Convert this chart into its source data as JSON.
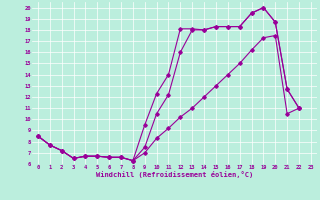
{
  "xlabel": "Windchill (Refroidissement éolien,°C)",
  "background_color": "#bbeedd",
  "line_color": "#990099",
  "xlim": [
    -0.5,
    23.5
  ],
  "ylim": [
    6,
    20.5
  ],
  "xticks": [
    0,
    1,
    2,
    3,
    4,
    5,
    6,
    7,
    8,
    9,
    10,
    11,
    12,
    13,
    14,
    15,
    16,
    17,
    18,
    19,
    20,
    21,
    22,
    23
  ],
  "yticks": [
    6,
    7,
    8,
    9,
    10,
    11,
    12,
    13,
    14,
    15,
    16,
    17,
    18,
    19,
    20
  ],
  "series": [
    {
      "x": [
        0,
        1,
        2,
        3,
        4,
        5,
        6,
        7,
        8,
        9,
        10,
        11,
        12,
        13,
        14,
        15,
        16,
        17,
        18,
        19,
        20,
        21,
        22
      ],
      "y": [
        8.5,
        7.7,
        7.2,
        6.5,
        6.7,
        6.7,
        6.6,
        6.6,
        6.3,
        9.5,
        12.3,
        14.0,
        18.1,
        18.1,
        18.0,
        18.3,
        18.3,
        18.3,
        19.5,
        20.0,
        18.7,
        12.7,
        11.0
      ]
    },
    {
      "x": [
        0,
        1,
        2,
        3,
        4,
        5,
        6,
        7,
        8,
        9,
        10,
        11,
        12,
        13,
        14,
        15,
        16,
        17,
        18,
        19,
        20,
        21,
        22
      ],
      "y": [
        8.5,
        7.7,
        7.2,
        6.5,
        6.7,
        6.7,
        6.6,
        6.6,
        6.3,
        7.0,
        8.3,
        9.2,
        10.2,
        11.0,
        12.0,
        13.0,
        14.0,
        15.0,
        16.2,
        17.3,
        17.5,
        10.5,
        11.0
      ]
    },
    {
      "x": [
        0,
        1,
        2,
        3,
        4,
        5,
        6,
        7,
        8,
        9,
        10,
        11,
        12,
        13,
        14,
        15,
        16,
        17,
        18,
        19,
        20,
        21,
        22
      ],
      "y": [
        8.5,
        7.7,
        7.2,
        6.5,
        6.7,
        6.7,
        6.6,
        6.6,
        6.3,
        7.5,
        10.5,
        12.2,
        16.0,
        18.0,
        18.0,
        18.3,
        18.3,
        18.3,
        19.5,
        20.0,
        18.7,
        12.7,
        11.0
      ]
    }
  ]
}
